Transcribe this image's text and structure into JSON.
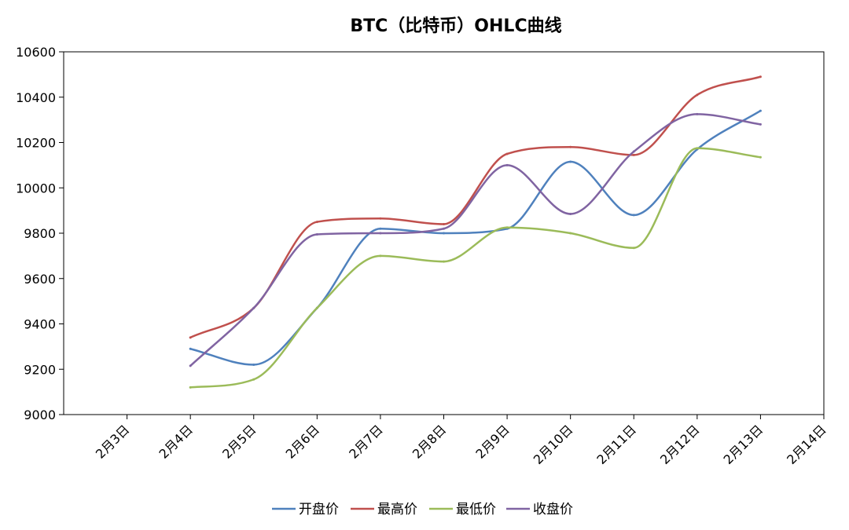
{
  "chart_data": {
    "type": "line",
    "title": "BTC（比特币）OHLC曲线",
    "xlabel": "",
    "ylabel": "",
    "categories": [
      "2月3日",
      "2月4日",
      "2月5日",
      "2月6日",
      "2月7日",
      "2月8日",
      "2月9日",
      "2月10日",
      "2月11日",
      "2月12日",
      "2月13日",
      "2月14日"
    ],
    "ylim": [
      9000,
      10600
    ],
    "yticks": [
      9000,
      9200,
      9400,
      9600,
      9800,
      10000,
      10200,
      10400,
      10600
    ],
    "grid": false,
    "legend_position": "bottom",
    "smooth": true,
    "series": [
      {
        "name": "开盘价",
        "color": "#4f81bd",
        "values": [
          null,
          9290,
          9220,
          9470,
          9820,
          9800,
          9820,
          10115,
          9880,
          10170,
          10340,
          null
        ]
      },
      {
        "name": "最高价",
        "color": "#c0504d",
        "values": [
          null,
          9340,
          9470,
          9850,
          9865,
          9840,
          10150,
          10180,
          10145,
          10410,
          10490,
          null
        ]
      },
      {
        "name": "最低价",
        "color": "#9bbb59",
        "values": [
          null,
          9120,
          9155,
          9470,
          9700,
          9675,
          9825,
          9800,
          9735,
          10175,
          10135,
          null
        ]
      },
      {
        "name": "收盘价",
        "color": "#8064a2",
        "values": [
          null,
          9215,
          9470,
          9795,
          9800,
          9820,
          10100,
          9885,
          10160,
          10325,
          10280,
          null
        ]
      }
    ]
  }
}
